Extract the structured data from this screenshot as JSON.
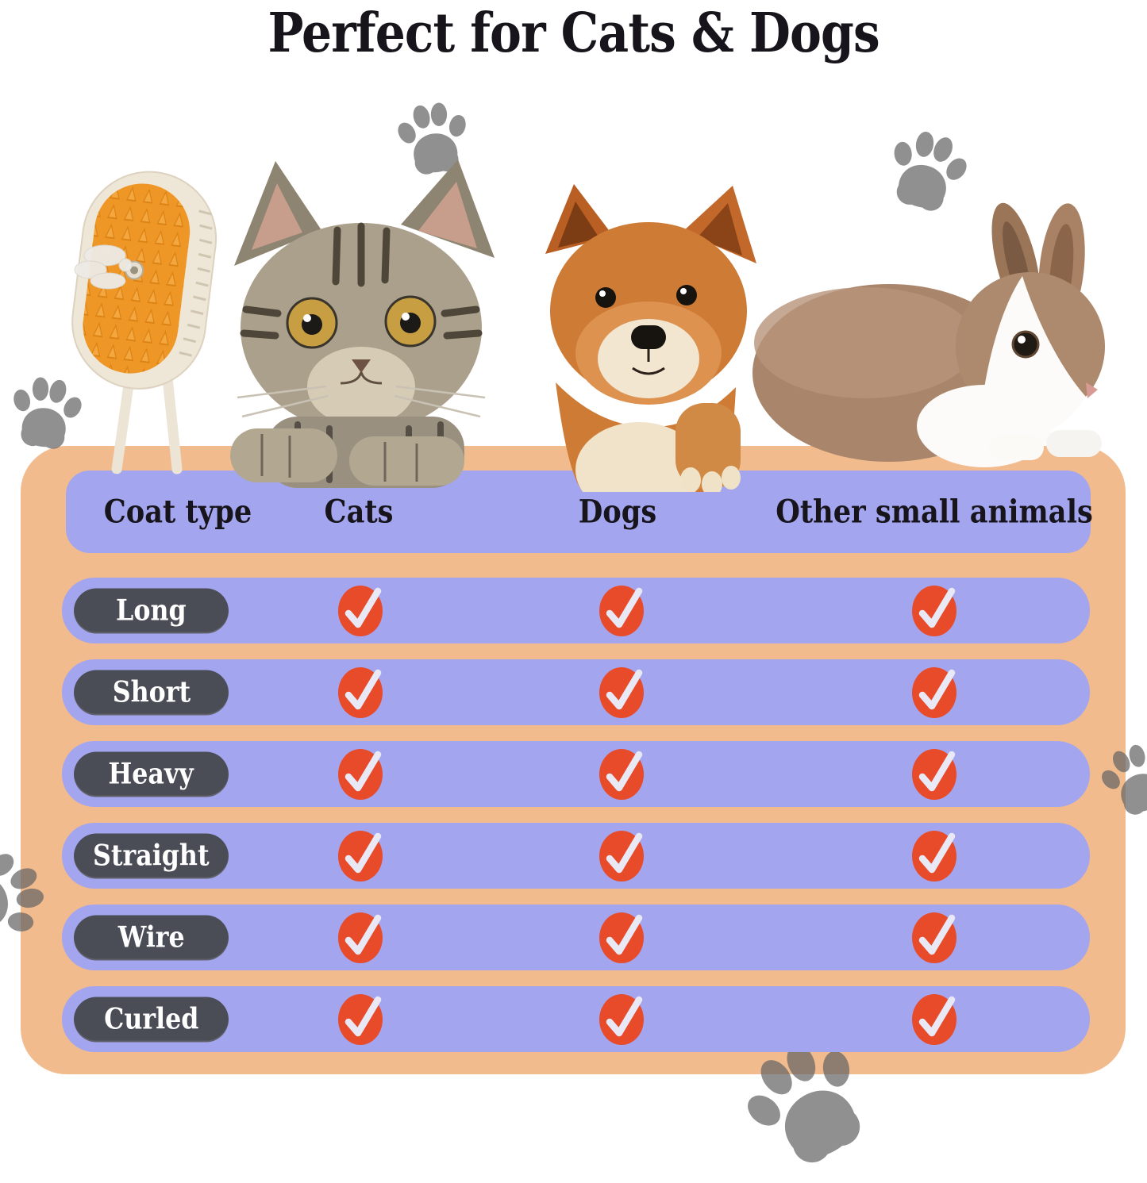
{
  "title": "Perfect for Cats & Dogs",
  "table": {
    "columns": [
      "Coat type",
      "Cats",
      "Dogs",
      "Other small animals"
    ],
    "rows": [
      {
        "label": "Long",
        "checks": [
          true,
          true,
          true
        ]
      },
      {
        "label": "Short",
        "checks": [
          true,
          true,
          true
        ]
      },
      {
        "label": "Heavy",
        "checks": [
          true,
          true,
          true
        ]
      },
      {
        "label": "Straight",
        "checks": [
          true,
          true,
          true
        ]
      },
      {
        "label": "Wire",
        "checks": [
          true,
          true,
          true
        ]
      },
      {
        "label": "Curled",
        "checks": [
          true,
          true,
          true
        ]
      }
    ]
  },
  "illustrations": {
    "brush": "steam grooming brush with orange bristles",
    "cat": "gray tabby kitten",
    "dog": "shiba inu puppy",
    "rabbit": "brown and white rabbit",
    "paw_decoration": "gray paw prints"
  },
  "colors": {
    "panel": "#f2bb8d",
    "row": "#a3a6ee",
    "pill": "#4a4c56",
    "check": "#e84b2a",
    "check_mark": "#e9e9f6",
    "paw": "#666666",
    "title_text": "#17141b",
    "pill_text": "#ffffff"
  }
}
